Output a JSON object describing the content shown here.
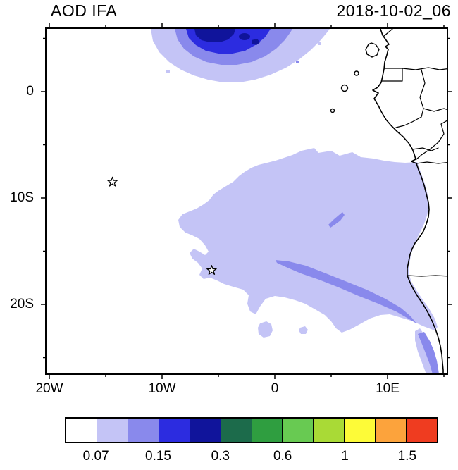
{
  "header": {
    "title_left": "AOD IFA",
    "title_right": "2018-10-02_06"
  },
  "axes": {
    "x_ticks": [
      {
        "label": "20W",
        "lon": -20
      },
      {
        "label": "10W",
        "lon": -10
      },
      {
        "label": "0",
        "lon": 0
      },
      {
        "label": "10E",
        "lon": 10
      }
    ],
    "y_ticks": [
      {
        "label": "0",
        "lat": 0
      },
      {
        "label": "10S",
        "lat": -10
      },
      {
        "label": "20S",
        "lat": -20
      }
    ]
  },
  "colorbar": {
    "labels": [
      "0.07",
      "0.15",
      "0.3",
      "0.6",
      "1",
      "1.5"
    ],
    "colors": [
      "#ffffff",
      "#c4c4f6",
      "#8989ec",
      "#2c2ce0",
      "#10149b",
      "#1c6b4b",
      "#2f9e40",
      "#68ca52",
      "#a9da36",
      "#fdfb38",
      "#fca33c",
      "#ef3c20"
    ]
  },
  "markers": [
    {
      "symbol": "open-star",
      "lon": -14.4,
      "lat": -8.5
    },
    {
      "symbol": "open-star",
      "lon": -5.6,
      "lat": -16.8
    }
  ],
  "chart_data": {
    "type": "heatmap",
    "subtype": "filled-contour-geographic-map",
    "title": "AOD IFA",
    "timestamp": "2018-10-02_06",
    "variable": "Aerosol Optical Depth",
    "lon_tick_labels": [
      "20W",
      "10W",
      "0",
      "10E"
    ],
    "lat_tick_labels": [
      "0",
      "10S",
      "20S"
    ],
    "lon_range_deg": [
      -20.3,
      15.3
    ],
    "lat_range_deg": [
      -26.5,
      6.0
    ],
    "colorbar_labels": [
      0.07,
      0.15,
      0.3,
      0.6,
      1,
      1.5
    ],
    "palette": [
      "#ffffff",
      "#c4c4f6",
      "#8989ec",
      "#2c2ce0",
      "#10149b",
      "#1c6b4b",
      "#2f9e40",
      "#68ca52",
      "#a9da36",
      "#fdfb38",
      "#fca33c",
      "#ef3c20"
    ],
    "legend_position": "bottom",
    "grid": false,
    "features": [
      {
        "name": "gulf-of-guinea-plume",
        "description": "AOD plume at top of map between about 11W and 5W centered near 3N, concentric bands with dark blue core (palette band 4-5, AOD ~0.15-0.2)"
      },
      {
        "name": "southeast-atlantic-sheet",
        "description": "broad pale blue area (palette band 2, AOD ~0.05-0.07) covering roughly 5S to 23S from about 9W east to the Angolan coast"
      },
      {
        "name": "diagonal-coastal-streak",
        "description": "narrow band-3 streak (AOD ~0.07-0.1) from about 0E,17S running southeast to the Namibian coast near 12E,20S and continuing south along the coast"
      },
      {
        "name": "small-offshore-patch",
        "description": "small band-3 patch near 5E,12S"
      }
    ],
    "markers": [
      {
        "symbol": "open-star",
        "lon": -14.4,
        "lat": -8.5
      },
      {
        "symbol": "open-star",
        "lon": -5.6,
        "lat": -16.8
      }
    ]
  }
}
